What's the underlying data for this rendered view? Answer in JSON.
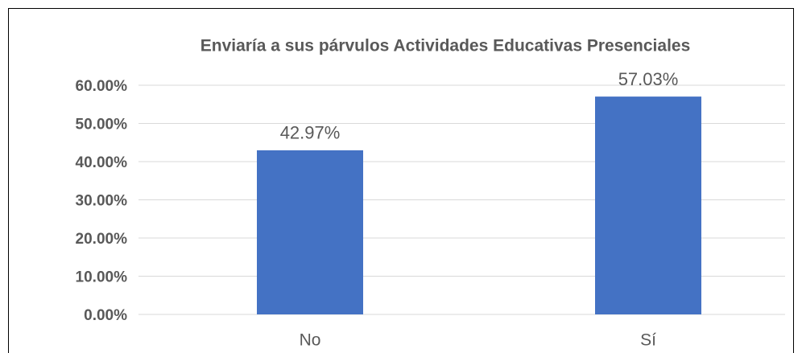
{
  "chart_data": {
    "type": "bar",
    "title": "Enviaría a sus párvulos Actividades Educativas Presenciales",
    "categories": [
      "No",
      "Sí"
    ],
    "values": [
      42.97,
      57.03
    ],
    "value_labels": [
      "42.97%",
      "57.03%"
    ],
    "color": "#4472c4",
    "ylim": [
      0,
      60
    ],
    "yticks": [
      {
        "value": 0,
        "label": "0.00%"
      },
      {
        "value": 10,
        "label": "10.00%"
      },
      {
        "value": 20,
        "label": "20.00%"
      },
      {
        "value": 30,
        "label": "30.00%"
      },
      {
        "value": 40,
        "label": "40.00%"
      },
      {
        "value": 50,
        "label": "50.00%"
      },
      {
        "value": 60,
        "label": "60.00%"
      }
    ],
    "grid": true
  }
}
